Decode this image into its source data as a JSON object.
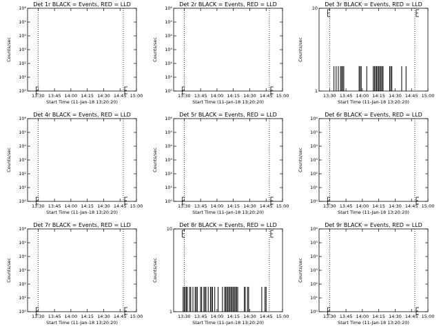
{
  "chart_data": [
    {
      "type": "line",
      "title": "Det 1r BLACK = Events, RED = LLD",
      "xlabel": "Start Time (11-Jan-18 13:20:20)",
      "ylabel": "Counts/sec",
      "y_scale": "log",
      "y_tick_labels": [
        "10⁰",
        "10¹",
        "10²",
        "10³",
        "10⁴",
        "10⁵",
        "10⁶"
      ],
      "x_tick_labels": [
        "13:30",
        "13:45",
        "14:00",
        "14:15",
        "14:30",
        "14:45",
        "15:00"
      ],
      "xlim": [
        "13:20:20",
        "15:00:00"
      ],
      "ylim": [
        1,
        1000000
      ],
      "dotted_vertical_lines": [
        "13:30",
        "14:48"
      ],
      "series": [
        {
          "color": "#000000",
          "x": [],
          "y": []
        }
      ]
    },
    {
      "type": "line",
      "title": "Det 2r BLACK = Events, RED = LLD",
      "xlabel": "Start Time (11-Jan-18 13:20:20)",
      "ylabel": "Counts/sec",
      "y_scale": "log",
      "y_tick_labels": [
        "10⁰",
        "10¹",
        "10²",
        "10³",
        "10⁴",
        "10⁵",
        "10⁶"
      ],
      "x_tick_labels": [
        "13:30",
        "13:45",
        "14:00",
        "14:15",
        "14:30",
        "14:45",
        "15:00"
      ],
      "xlim": [
        "13:20:20",
        "15:00:00"
      ],
      "ylim": [
        1,
        1000000
      ],
      "dotted_vertical_lines": [
        "13:30",
        "14:48"
      ],
      "series": [
        {
          "color": "#000000",
          "x": [],
          "y": []
        }
      ]
    },
    {
      "type": "line",
      "title": "Det 3r BLACK = Events, RED = LLD",
      "xlabel": "Start Time (11-Jan-18 13:20:20)",
      "ylabel": "Counts/sec",
      "y_scale": "log",
      "y_tick_labels": [
        "1",
        "10"
      ],
      "x_tick_labels": [
        "13:30",
        "13:45",
        "14:00",
        "14:15",
        "14:30",
        "14:45",
        "15:00"
      ],
      "xlim": [
        "13:20:20",
        "15:00:00"
      ],
      "ylim": [
        1,
        10
      ],
      "dotted_vertical_lines": [
        "13:30",
        "14:48"
      ],
      "series": [
        {
          "color": "#000000",
          "x": [
            "13:34",
            "13:36",
            "13:38",
            "13:40",
            "13:41",
            "13:42",
            "13:43",
            "13:57",
            "13:58",
            "13:59",
            "14:04",
            "14:10",
            "14:11",
            "14:12",
            "14:13",
            "14:14",
            "14:15",
            "14:16",
            "14:17",
            "14:18",
            "14:19",
            "14:25",
            "14:26",
            "14:27",
            "14:36",
            "14:40"
          ],
          "y": [
            2,
            2,
            2,
            2,
            2,
            2,
            2,
            2,
            2,
            2,
            2,
            2,
            2,
            2,
            2,
            2,
            2,
            2,
            2,
            2,
            2,
            2,
            2,
            2,
            2,
            2
          ]
        }
      ]
    },
    {
      "type": "line",
      "title": "Det 4r BLACK = Events, RED = LLD",
      "xlabel": "Start Time (11-Jan-18 13:20:20)",
      "ylabel": "Counts/sec",
      "y_scale": "log",
      "y_tick_labels": [
        "10⁰",
        "10¹",
        "10²",
        "10³",
        "10⁴",
        "10⁵",
        "10⁶"
      ],
      "x_tick_labels": [
        "13:30",
        "13:45",
        "14:00",
        "14:15",
        "14:30",
        "14:45",
        "15:00"
      ],
      "xlim": [
        "13:20:20",
        "15:00:00"
      ],
      "ylim": [
        1,
        1000000
      ],
      "dotted_vertical_lines": [
        "13:30",
        "14:48"
      ],
      "series": [
        {
          "color": "#000000",
          "x": [],
          "y": []
        }
      ]
    },
    {
      "type": "line",
      "title": "Det 5r BLACK = Events, RED = LLD",
      "xlabel": "Start Time (11-Jan-18 13:20:20)",
      "ylabel": "Counts/sec",
      "y_scale": "log",
      "y_tick_labels": [
        "10⁰",
        "10¹",
        "10²",
        "10³",
        "10⁴",
        "10⁵",
        "10⁶"
      ],
      "x_tick_labels": [
        "13:30",
        "13:45",
        "14:00",
        "14:15",
        "14:30",
        "14:45",
        "15:00"
      ],
      "xlim": [
        "13:20:20",
        "15:00:00"
      ],
      "ylim": [
        1,
        1000000
      ],
      "dotted_vertical_lines": [
        "13:30",
        "14:48"
      ],
      "series": [
        {
          "color": "#000000",
          "x": [],
          "y": []
        }
      ]
    },
    {
      "type": "line",
      "title": "Det 6r BLACK = Events, RED = LLD",
      "xlabel": "Start Time (11-Jan-18 13:20:20)",
      "ylabel": "Counts/sec",
      "y_scale": "log",
      "y_tick_labels": [
        "10⁰",
        "10¹",
        "10²",
        "10³",
        "10⁴",
        "10⁵",
        "10⁶"
      ],
      "x_tick_labels": [
        "13:30",
        "13:45",
        "14:00",
        "14:15",
        "14:30",
        "14:45",
        "15:00"
      ],
      "xlim": [
        "13:20:20",
        "15:00:00"
      ],
      "ylim": [
        1,
        1000000
      ],
      "dotted_vertical_lines": [
        "13:30",
        "14:48"
      ],
      "series": [
        {
          "color": "#000000",
          "x": [],
          "y": []
        }
      ]
    },
    {
      "type": "line",
      "title": "Det 7r BLACK = Events, RED = LLD",
      "xlabel": "Start Time (11-Jan-18 13:20:20)",
      "ylabel": "Counts/sec",
      "y_scale": "log",
      "y_tick_labels": [
        "10⁰",
        "10¹",
        "10²",
        "10³",
        "10⁴",
        "10⁵",
        "10⁶"
      ],
      "x_tick_labels": [
        "13:30",
        "13:45",
        "14:00",
        "14:15",
        "14:30",
        "14:45",
        "15:00"
      ],
      "xlim": [
        "13:20:20",
        "15:00:00"
      ],
      "ylim": [
        1,
        1000000
      ],
      "dotted_vertical_lines": [
        "13:30",
        "14:48"
      ],
      "series": [
        {
          "color": "#000000",
          "x": [],
          "y": []
        }
      ]
    },
    {
      "type": "line",
      "title": "Det 8r BLACK = Events, RED = LLD",
      "xlabel": "Start Time (11-Jan-18 13:20:20)",
      "ylabel": "Counts/sec",
      "y_scale": "log",
      "y_tick_labels": [
        "1",
        "10"
      ],
      "x_tick_labels": [
        "13:30",
        "13:45",
        "14:00",
        "14:15",
        "14:30",
        "14:45",
        "15:00"
      ],
      "xlim": [
        "13:20:20",
        "15:00:00"
      ],
      "ylim": [
        1,
        10
      ],
      "dotted_vertical_lines": [
        "13:30",
        "14:48"
      ],
      "series": [
        {
          "color": "#000000",
          "x": [
            "13:29",
            "13:30",
            "13:31",
            "13:32",
            "13:33",
            "13:35",
            "13:36",
            "13:38",
            "13:40",
            "13:41",
            "13:42",
            "13:45",
            "13:46",
            "13:48",
            "13:49",
            "13:50",
            "13:52",
            "13:54",
            "13:55",
            "13:56",
            "13:58",
            "14:01",
            "14:05",
            "14:07",
            "14:08",
            "14:09",
            "14:10",
            "14:11",
            "14:12",
            "14:13",
            "14:14",
            "14:15",
            "14:16",
            "14:17",
            "14:18",
            "14:19",
            "14:25",
            "14:26",
            "14:28",
            "14:29",
            "14:41",
            "14:44",
            "14:45"
          ],
          "y": [
            2,
            2,
            2,
            2,
            2,
            2,
            2,
            2,
            2,
            2,
            2,
            2,
            2,
            2,
            2,
            2,
            2,
            2,
            2,
            2,
            2,
            2,
            2,
            2,
            2,
            2,
            2,
            2,
            2,
            2,
            2,
            2,
            2,
            2,
            2,
            2,
            2,
            2,
            2,
            2,
            2,
            2,
            2
          ]
        }
      ]
    },
    {
      "type": "line",
      "title": "Det 9r BLACK = Events, RED = LLD",
      "xlabel": "Start Time (11-Jan-18 13:20:20)",
      "ylabel": "Counts/sec",
      "y_scale": "log",
      "y_tick_labels": [
        "10⁰",
        "10¹",
        "10²",
        "10³",
        "10⁴",
        "10⁵",
        "10⁶"
      ],
      "x_tick_labels": [
        "13:30",
        "13:45",
        "14:00",
        "14:15",
        "14:30",
        "14:45",
        "15:00"
      ],
      "xlim": [
        "13:20:20",
        "15:00:00"
      ],
      "ylim": [
        1,
        1000000
      ],
      "dotted_vertical_lines": [
        "13:30",
        "14:48"
      ],
      "series": [
        {
          "color": "#000000",
          "x": [],
          "y": []
        }
      ]
    }
  ]
}
